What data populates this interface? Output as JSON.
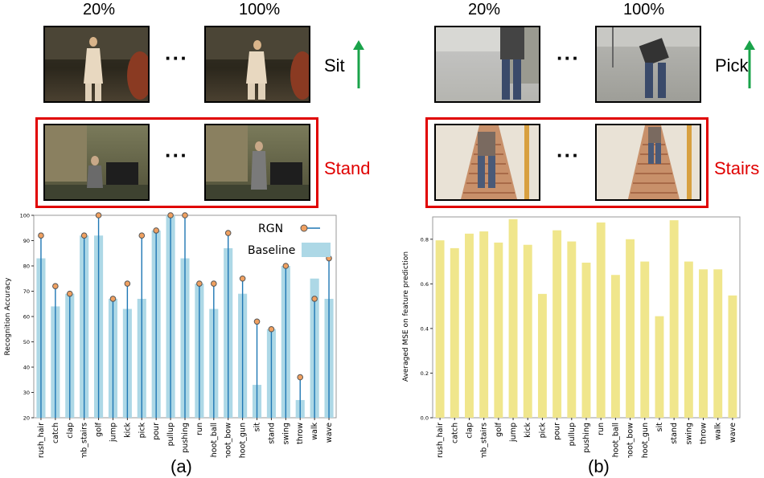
{
  "top": {
    "left": {
      "pct_start": "20%",
      "pct_end": "100%",
      "action": "Sit"
    },
    "right": {
      "pct_start": "20%",
      "pct_end": "100%",
      "action": "Pick"
    }
  },
  "middle": {
    "left": {
      "action": "Stand"
    },
    "right": {
      "action": "Stairs"
    }
  },
  "dots": "···",
  "labels": {
    "a": "(a)",
    "b": "(b)"
  },
  "colors": {
    "highlight": "#e00000",
    "arrow": "#1aa34a",
    "rgn": "#1f77b4",
    "baseline": "#add8e6",
    "mse": "#f0e68c"
  },
  "chart_data": [
    {
      "type": "bar",
      "ylabel": "Recognition Accuracy",
      "ylim": [
        20,
        100
      ],
      "yticks": [
        20,
        30,
        40,
        50,
        60,
        70,
        80,
        90,
        100
      ],
      "categories": [
        "brush_hair",
        "catch",
        "clap",
        "climb_stairs",
        "golf",
        "jump",
        "kick",
        "pick",
        "pour",
        "pullup",
        "pushing",
        "run",
        "shoot_ball",
        "shoot_bow",
        "shoot_gun",
        "sit",
        "stand",
        "swing",
        "throw",
        "walk",
        "wave"
      ],
      "series": [
        {
          "name": "RGN",
          "style": "stem",
          "values": [
            92,
            72,
            69,
            92,
            100,
            67,
            73,
            92,
            94,
            100,
            100,
            73,
            73,
            93,
            75,
            58,
            55,
            80,
            36,
            67,
            83
          ]
        },
        {
          "name": "Baseline",
          "style": "bar",
          "values": [
            83,
            64,
            69,
            92,
            92,
            67,
            63,
            67,
            94,
            100,
            83,
            73,
            63,
            87,
            69,
            33,
            55,
            80,
            27,
            75,
            67
          ]
        }
      ],
      "legend": "top-right",
      "label": "(a)"
    },
    {
      "type": "bar",
      "ylabel": "Averaged MSE on feature prediction",
      "ylim": [
        0,
        0.9
      ],
      "yticks": [
        0.0,
        0.2,
        0.4,
        0.6,
        0.8
      ],
      "categories": [
        "brush_hair",
        "catch",
        "clap",
        "climb_stairs",
        "golf",
        "jump",
        "kick",
        "pick",
        "pour",
        "pullup",
        "pushing",
        "run",
        "shoot_ball",
        "shoot_bow",
        "shoot_gun",
        "sit",
        "stand",
        "swing",
        "throw",
        "walk",
        "wave"
      ],
      "values": [
        0.795,
        0.76,
        0.825,
        0.835,
        0.785,
        0.89,
        0.775,
        0.555,
        0.84,
        0.79,
        0.695,
        0.875,
        0.64,
        0.8,
        0.7,
        0.455,
        0.885,
        0.7,
        0.665,
        0.665,
        0.548
      ],
      "label": "(b)"
    }
  ]
}
